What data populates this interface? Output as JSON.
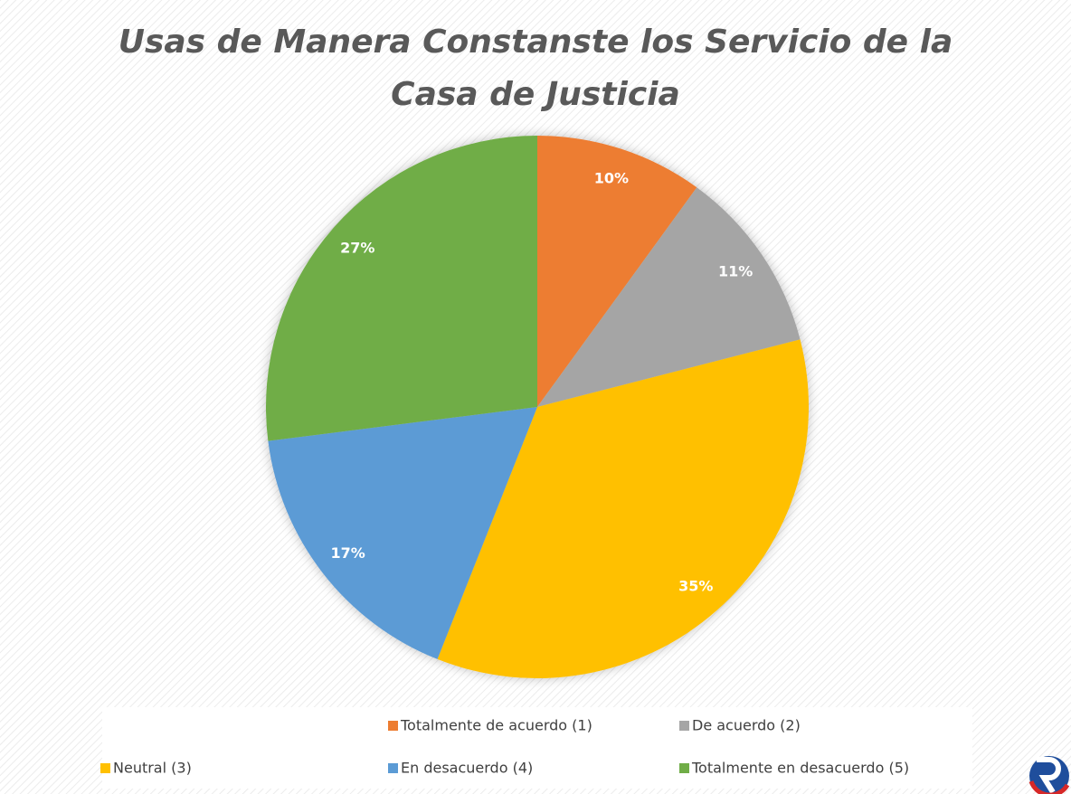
{
  "chart_data": {
    "type": "pie",
    "title": "Usas de Manera Constanste los Servicio de la Casa de Justicia",
    "categories": [
      "Totalmente de acuerdo (1)",
      "De acuerdo (2)",
      "Neutral (3)",
      "En desacuerdo (4)",
      "Totalmente en desacuerdo (5)"
    ],
    "values": [
      10,
      11,
      35,
      17,
      27
    ],
    "value_labels": [
      "10%",
      "11%",
      "35%",
      "17%",
      "27%"
    ],
    "colors": [
      "#ed7d31",
      "#a5a5a5",
      "#ffc000",
      "#5b9bd5",
      "#70ad47"
    ],
    "legend": "bottom"
  }
}
